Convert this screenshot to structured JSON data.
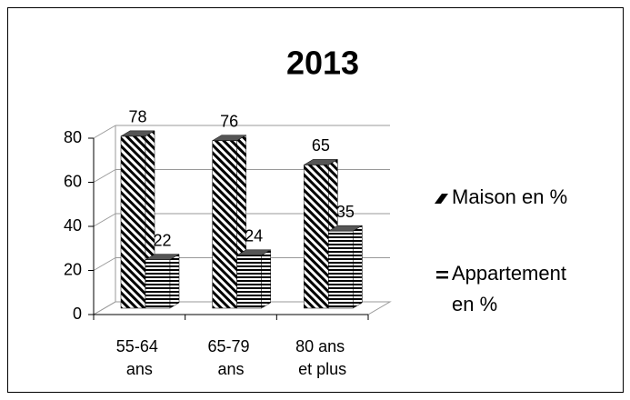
{
  "chart_data": {
    "type": "bar3d",
    "title": "2013",
    "categories": [
      "55-64 ans",
      "65-79 ans",
      "80 ans et plus"
    ],
    "series": [
      {
        "name": "Maison en %",
        "color": "#000000",
        "pattern": "diagonal",
        "values": [
          78,
          76,
          65
        ]
      },
      {
        "name": "Appartement en %",
        "color": "#000000",
        "pattern": "horizontal",
        "values": [
          22,
          24,
          35
        ]
      }
    ],
    "ylim": [
      0,
      80
    ],
    "yticks": [
      0,
      20,
      40,
      60,
      80
    ],
    "grid": true,
    "legend": "right"
  }
}
